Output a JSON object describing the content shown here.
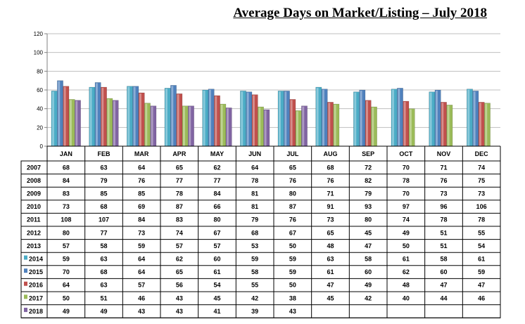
{
  "chart_data": {
    "type": "bar",
    "title": "Average Days on Market/Listing – July 2018",
    "ylim": [
      0,
      120
    ],
    "yticks": [
      0,
      20,
      40,
      60,
      80,
      100,
      120
    ],
    "categories": [
      "JAN",
      "FEB",
      "MAR",
      "APR",
      "MAY",
      "JUN",
      "JUL",
      "AUG",
      "SEP",
      "OCT",
      "NOV",
      "DEC"
    ],
    "bar_series": [
      "2014",
      "2015",
      "2016",
      "2017",
      "2018"
    ],
    "series": [
      {
        "name": "2007",
        "values": [
          68,
          63,
          64,
          65,
          62,
          64,
          65,
          68,
          72,
          70,
          71,
          74
        ]
      },
      {
        "name": "2008",
        "values": [
          84,
          79,
          76,
          77,
          77,
          78,
          76,
          76,
          82,
          78,
          76,
          75
        ]
      },
      {
        "name": "2009",
        "values": [
          83,
          85,
          85,
          78,
          84,
          81,
          80,
          71,
          79,
          70,
          73,
          73
        ]
      },
      {
        "name": "2010",
        "values": [
          73,
          68,
          69,
          87,
          66,
          81,
          87,
          91,
          93,
          97,
          96,
          106
        ]
      },
      {
        "name": "2011",
        "values": [
          108,
          107,
          84,
          83,
          80,
          79,
          76,
          73,
          80,
          74,
          78,
          78
        ]
      },
      {
        "name": "2012",
        "values": [
          80,
          77,
          73,
          74,
          67,
          68,
          67,
          65,
          45,
          49,
          51,
          55
        ]
      },
      {
        "name": "2013",
        "values": [
          57,
          58,
          59,
          57,
          57,
          53,
          50,
          48,
          47,
          50,
          51,
          54
        ]
      },
      {
        "name": "2014",
        "color": "#4bacc6",
        "values": [
          59,
          63,
          64,
          62,
          60,
          59,
          59,
          63,
          58,
          61,
          58,
          61
        ]
      },
      {
        "name": "2015",
        "color": "#4f81bd",
        "values": [
          70,
          68,
          64,
          65,
          61,
          58,
          59,
          61,
          60,
          62,
          60,
          59
        ]
      },
      {
        "name": "2016",
        "color": "#c0504d",
        "values": [
          64,
          63,
          57,
          56,
          54,
          55,
          50,
          47,
          49,
          48,
          47,
          47
        ]
      },
      {
        "name": "2017",
        "color": "#9bbb59",
        "values": [
          50,
          51,
          46,
          43,
          45,
          42,
          38,
          45,
          42,
          40,
          44,
          46
        ]
      },
      {
        "name": "2018",
        "color": "#8064a2",
        "values": [
          49,
          49,
          43,
          43,
          41,
          39,
          43,
          null,
          null,
          null,
          null,
          null
        ]
      }
    ],
    "grid": true,
    "legend": "table-left"
  }
}
